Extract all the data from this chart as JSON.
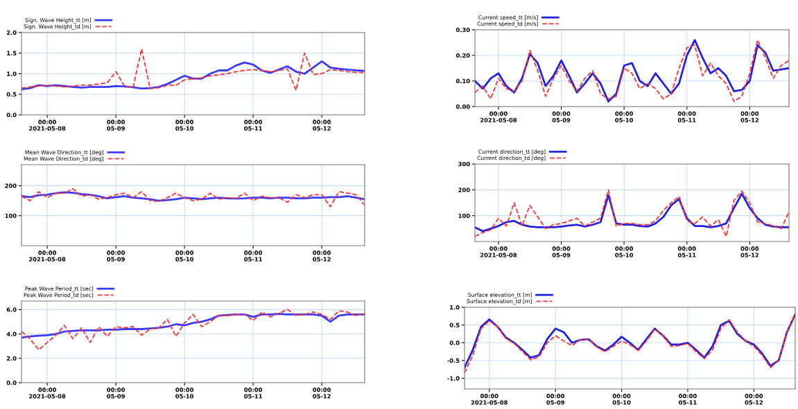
{
  "chart_data": [
    {
      "type": "line",
      "grid": true,
      "legend": "top left",
      "xlim": [
        "2021-05-07T15:00",
        "2021-05-12T15:00"
      ],
      "xticks": [
        {
          "value": "2021-05-08T00:00",
          "label": "00:00\n2021-05-08"
        },
        {
          "value": "2021-05-09T00:00",
          "label": "00:00\n05-09"
        },
        {
          "value": "2021-05-10T00:00",
          "label": "00:00\n05-10"
        },
        {
          "value": "2021-05-11T00:00",
          "label": "00:00\n05-11"
        },
        {
          "value": "2021-05-12T00:00",
          "label": "00:00\n05-12"
        }
      ],
      "ylim": [
        0,
        2
      ],
      "yticks": [
        {
          "value": 0,
          "label": "0.0"
        },
        {
          "value": 0.5,
          "label": "0.5"
        },
        {
          "value": 1,
          "label": "1.0"
        },
        {
          "value": 1.5,
          "label": "1.5"
        },
        {
          "value": 2,
          "label": "2.0"
        }
      ],
      "x": [
        "2021-05-07T15:00",
        "2021-05-07T18:00",
        "2021-05-07T21:00",
        "2021-05-08T00:00",
        "2021-05-08T03:00",
        "2021-05-08T06:00",
        "2021-05-08T09:00",
        "2021-05-08T12:00",
        "2021-05-08T15:00",
        "2021-05-08T18:00",
        "2021-05-08T21:00",
        "2021-05-09T00:00",
        "2021-05-09T03:00",
        "2021-05-09T06:00",
        "2021-05-09T09:00",
        "2021-05-09T12:00",
        "2021-05-09T15:00",
        "2021-05-09T18:00",
        "2021-05-09T21:00",
        "2021-05-10T00:00",
        "2021-05-10T03:00",
        "2021-05-10T06:00",
        "2021-05-10T09:00",
        "2021-05-10T12:00",
        "2021-05-10T15:00",
        "2021-05-10T18:00",
        "2021-05-10T21:00",
        "2021-05-11T00:00",
        "2021-05-11T03:00",
        "2021-05-11T06:00",
        "2021-05-11T09:00",
        "2021-05-11T12:00",
        "2021-05-11T15:00",
        "2021-05-11T18:00",
        "2021-05-11T21:00",
        "2021-05-12T00:00",
        "2021-05-12T03:00",
        "2021-05-12T06:00",
        "2021-05-12T09:00",
        "2021-05-12T12:00",
        "2021-05-12T15:00"
      ],
      "series": [
        {
          "name": "Sign. Wave Height_tt [m]",
          "color": "#3a3aff",
          "line_style": "solid",
          "values": [
            0.62,
            0.65,
            0.72,
            0.7,
            0.72,
            0.7,
            0.68,
            0.66,
            0.68,
            0.68,
            0.68,
            0.7,
            0.69,
            0.67,
            0.64,
            0.65,
            0.68,
            0.75,
            0.85,
            0.95,
            0.88,
            0.88,
            1.0,
            1.08,
            1.08,
            1.2,
            1.27,
            1.22,
            1.08,
            1.02,
            1.1,
            1.18,
            1.05,
            1.0,
            1.15,
            1.3,
            1.15,
            1.12,
            1.1,
            1.08,
            1.07
          ]
        },
        {
          "name": "Sign. Wave Height_td [m]",
          "color": "#ff3030",
          "line_style": "dashed",
          "values": [
            0.65,
            0.68,
            0.7,
            0.72,
            0.7,
            0.68,
            0.7,
            0.72,
            0.72,
            0.75,
            0.78,
            1.05,
            0.7,
            0.66,
            1.6,
            0.64,
            0.66,
            0.72,
            0.72,
            0.85,
            0.88,
            0.9,
            0.95,
            0.97,
            1.0,
            1.05,
            1.08,
            1.1,
            1.08,
            1.05,
            1.08,
            1.12,
            0.6,
            1.5,
            0.98,
            1.0,
            1.1,
            1.08,
            1.05,
            1.03,
            1.03
          ]
        }
      ]
    },
    {
      "type": "line",
      "grid": true,
      "legend": "top left",
      "xlim": [
        "2021-05-07T15:00",
        "2021-05-12T15:00"
      ],
      "xticks": [
        {
          "value": "2021-05-08T00:00",
          "label": "00:00\n2021-05-08"
        },
        {
          "value": "2021-05-09T00:00",
          "label": "00:00\n05-09"
        },
        {
          "value": "2021-05-10T00:00",
          "label": "00:00\n05-10"
        },
        {
          "value": "2021-05-11T00:00",
          "label": "00:00\n05-11"
        },
        {
          "value": "2021-05-12T00:00",
          "label": "00:00\n05-12"
        }
      ],
      "ylim": [
        0,
        270
      ],
      "yticks": [
        100,
        200
      ],
      "x": [
        "2021-05-07T15:00",
        "2021-05-07T18:00",
        "2021-05-07T21:00",
        "2021-05-08T00:00",
        "2021-05-08T03:00",
        "2021-05-08T06:00",
        "2021-05-08T09:00",
        "2021-05-08T12:00",
        "2021-05-08T15:00",
        "2021-05-08T18:00",
        "2021-05-08T21:00",
        "2021-05-09T00:00",
        "2021-05-09T03:00",
        "2021-05-09T06:00",
        "2021-05-09T09:00",
        "2021-05-09T12:00",
        "2021-05-09T15:00",
        "2021-05-09T18:00",
        "2021-05-09T21:00",
        "2021-05-10T00:00",
        "2021-05-10T03:00",
        "2021-05-10T06:00",
        "2021-05-10T09:00",
        "2021-05-10T12:00",
        "2021-05-10T15:00",
        "2021-05-10T18:00",
        "2021-05-10T21:00",
        "2021-05-11T00:00",
        "2021-05-11T03:00",
        "2021-05-11T06:00",
        "2021-05-11T09:00",
        "2021-05-11T12:00",
        "2021-05-11T15:00",
        "2021-05-11T18:00",
        "2021-05-11T21:00",
        "2021-05-12T00:00",
        "2021-05-12T03:00",
        "2021-05-12T06:00",
        "2021-05-12T09:00",
        "2021-05-12T12:00",
        "2021-05-12T15:00"
      ],
      "series": [
        {
          "name": "Mean Wave Direction_tt [deg]",
          "color": "#3a3aff",
          "line_style": "solid",
          "values": [
            165,
            162,
            168,
            170,
            175,
            178,
            176,
            172,
            170,
            165,
            158,
            162,
            165,
            160,
            158,
            155,
            150,
            152,
            155,
            160,
            158,
            155,
            158,
            160,
            158,
            157,
            158,
            160,
            160,
            158,
            160,
            160,
            158,
            158,
            160,
            160,
            162,
            162,
            165,
            160,
            155
          ]
        },
        {
          "name": "Mean Wave Direction_td [deg]",
          "color": "#ff3030",
          "line_style": "dashed",
          "values": [
            165,
            150,
            180,
            160,
            175,
            175,
            190,
            165,
            170,
            155,
            160,
            170,
            175,
            160,
            180,
            150,
            148,
            160,
            175,
            160,
            150,
            155,
            175,
            155,
            160,
            158,
            175,
            150,
            165,
            160,
            160,
            145,
            170,
            160,
            170,
            170,
            130,
            180,
            175,
            170,
            135
          ]
        }
      ]
    },
    {
      "type": "line",
      "grid": true,
      "legend": "top left",
      "xlim": [
        "2021-05-07T15:00",
        "2021-05-12T15:00"
      ],
      "xticks": [
        {
          "value": "2021-05-08T00:00",
          "label": "00:00\n2021-05-08"
        },
        {
          "value": "2021-05-09T00:00",
          "label": "00:00\n05-09"
        },
        {
          "value": "2021-05-10T00:00",
          "label": "00:00\n05-10"
        },
        {
          "value": "2021-05-11T00:00",
          "label": "00:00\n05-11"
        },
        {
          "value": "2021-05-12T00:00",
          "label": "00:00\n05-12"
        }
      ],
      "ylim": [
        0,
        6.7
      ],
      "yticks": [
        {
          "value": 0,
          "label": "0.0"
        },
        {
          "value": 2,
          "label": "2.0"
        },
        {
          "value": 4,
          "label": "4.0"
        },
        {
          "value": 6,
          "label": "6.0"
        }
      ],
      "x": [
        "2021-05-07T15:00",
        "2021-05-07T18:00",
        "2021-05-07T21:00",
        "2021-05-08T00:00",
        "2021-05-08T03:00",
        "2021-05-08T06:00",
        "2021-05-08T09:00",
        "2021-05-08T12:00",
        "2021-05-08T15:00",
        "2021-05-08T18:00",
        "2021-05-08T21:00",
        "2021-05-09T00:00",
        "2021-05-09T03:00",
        "2021-05-09T06:00",
        "2021-05-09T09:00",
        "2021-05-09T12:00",
        "2021-05-09T15:00",
        "2021-05-09T18:00",
        "2021-05-09T21:00",
        "2021-05-10T00:00",
        "2021-05-10T03:00",
        "2021-05-10T06:00",
        "2021-05-10T09:00",
        "2021-05-10T12:00",
        "2021-05-10T15:00",
        "2021-05-10T18:00",
        "2021-05-10T21:00",
        "2021-05-11T00:00",
        "2021-05-11T03:00",
        "2021-05-11T06:00",
        "2021-05-11T09:00",
        "2021-05-11T12:00",
        "2021-05-11T15:00",
        "2021-05-11T18:00",
        "2021-05-11T21:00",
        "2021-05-12T00:00",
        "2021-05-12T03:00",
        "2021-05-12T06:00",
        "2021-05-12T09:00",
        "2021-05-12T12:00",
        "2021-05-12T15:00"
      ],
      "series": [
        {
          "name": "Peak Wave Period_tt [sec]",
          "color": "#3a3aff",
          "line_style": "solid",
          "values": [
            3.7,
            3.8,
            3.85,
            3.9,
            4.0,
            4.2,
            4.25,
            4.3,
            4.3,
            4.3,
            4.35,
            4.35,
            4.4,
            4.4,
            4.4,
            4.45,
            4.5,
            4.6,
            4.8,
            4.7,
            4.9,
            5.0,
            5.2,
            5.5,
            5.55,
            5.6,
            5.6,
            5.4,
            5.6,
            5.6,
            5.65,
            5.6,
            5.6,
            5.6,
            5.6,
            5.5,
            5.0,
            5.5,
            5.6,
            5.6,
            5.6
          ]
        },
        {
          "name": "Peak Wave Period_td [sec]",
          "color": "#ff3030",
          "line_style": "dashed",
          "values": [
            4.2,
            3.6,
            2.7,
            3.3,
            3.9,
            4.7,
            3.6,
            4.5,
            3.3,
            4.6,
            3.8,
            4.6,
            4.5,
            4.6,
            3.9,
            4.4,
            4.5,
            5.2,
            3.8,
            4.9,
            5.6,
            4.6,
            5.0,
            5.5,
            5.5,
            5.6,
            5.6,
            5.1,
            5.8,
            5.4,
            5.7,
            6.0,
            5.5,
            5.6,
            5.8,
            5.6,
            5.2,
            5.9,
            5.8,
            5.5,
            5.7
          ]
        }
      ]
    },
    {
      "type": "line",
      "grid": true,
      "legend": "top left",
      "xlim": [
        "2021-05-07T15:00",
        "2021-05-12T15:00"
      ],
      "xticks": [
        {
          "value": "2021-05-08T00:00",
          "label": "00:00\n2021-05-08"
        },
        {
          "value": "2021-05-09T00:00",
          "label": "00:00\n05-09"
        },
        {
          "value": "2021-05-10T00:00",
          "label": "00:00\n05-10"
        },
        {
          "value": "2021-05-11T00:00",
          "label": "00:00\n05-11"
        },
        {
          "value": "2021-05-12T00:00",
          "label": "00:00\n05-12"
        }
      ],
      "ylim": [
        0,
        0.3
      ],
      "yticks": [
        {
          "value": 0,
          "label": "0.00"
        },
        {
          "value": 0.1,
          "label": "0.10"
        },
        {
          "value": 0.2,
          "label": "0.20"
        },
        {
          "value": 0.3,
          "label": "0.30"
        }
      ],
      "x": [
        "2021-05-07T15:00",
        "2021-05-07T18:00",
        "2021-05-07T21:00",
        "2021-05-08T00:00",
        "2021-05-08T03:00",
        "2021-05-08T06:00",
        "2021-05-08T09:00",
        "2021-05-08T12:00",
        "2021-05-08T15:00",
        "2021-05-08T18:00",
        "2021-05-08T21:00",
        "2021-05-09T00:00",
        "2021-05-09T03:00",
        "2021-05-09T06:00",
        "2021-05-09T09:00",
        "2021-05-09T12:00",
        "2021-05-09T15:00",
        "2021-05-09T18:00",
        "2021-05-09T21:00",
        "2021-05-10T00:00",
        "2021-05-10T03:00",
        "2021-05-10T06:00",
        "2021-05-10T09:00",
        "2021-05-10T12:00",
        "2021-05-10T15:00",
        "2021-05-10T18:00",
        "2021-05-10T21:00",
        "2021-05-11T00:00",
        "2021-05-11T03:00",
        "2021-05-11T06:00",
        "2021-05-11T09:00",
        "2021-05-11T12:00",
        "2021-05-11T15:00",
        "2021-05-11T18:00",
        "2021-05-11T21:00",
        "2021-05-12T00:00",
        "2021-05-12T03:00",
        "2021-05-12T06:00",
        "2021-05-12T09:00",
        "2021-05-12T12:00",
        "2021-05-12T15:00"
      ],
      "series": [
        {
          "name": "Current speed_tt [m/s]",
          "color": "#2020e0",
          "line_style": "solid",
          "values": [
            0.1,
            0.07,
            0.11,
            0.13,
            0.08,
            0.055,
            0.11,
            0.205,
            0.17,
            0.08,
            0.12,
            0.18,
            0.12,
            0.055,
            0.09,
            0.13,
            0.09,
            0.02,
            0.05,
            0.16,
            0.17,
            0.1,
            0.08,
            0.13,
            0.09,
            0.05,
            0.09,
            0.2,
            0.26,
            0.19,
            0.13,
            0.15,
            0.12,
            0.06,
            0.065,
            0.1,
            0.24,
            0.21,
            0.14,
            0.145,
            0.15
          ]
        },
        {
          "name": "Current speed_td [m/s]",
          "color": "#ff3030",
          "line_style": "dashed",
          "values": [
            0.055,
            0.08,
            0.03,
            0.11,
            0.07,
            0.06,
            0.1,
            0.22,
            0.14,
            0.04,
            0.11,
            0.16,
            0.1,
            0.06,
            0.11,
            0.14,
            0.05,
            0.03,
            0.04,
            0.15,
            0.13,
            0.07,
            0.09,
            0.07,
            0.03,
            0.05,
            0.15,
            0.23,
            0.24,
            0.12,
            0.17,
            0.12,
            0.09,
            0.02,
            0.04,
            0.13,
            0.26,
            0.19,
            0.11,
            0.16,
            0.18
          ]
        }
      ]
    },
    {
      "type": "line",
      "grid": true,
      "legend": "top left",
      "xlim": [
        "2021-05-07T15:00",
        "2021-05-12T15:00"
      ],
      "xticks": [
        {
          "value": "2021-05-08T00:00",
          "label": "00:00\n2021-05-08"
        },
        {
          "value": "2021-05-09T00:00",
          "label": "00:00\n05-09"
        },
        {
          "value": "2021-05-10T00:00",
          "label": "00:00\n05-10"
        },
        {
          "value": "2021-05-11T00:00",
          "label": "00:00\n05-11"
        },
        {
          "value": "2021-05-12T00:00",
          "label": "00:00\n05-12"
        }
      ],
      "ylim": [
        0,
        300
      ],
      "yticks": [
        100,
        200,
        300
      ],
      "x": [
        "2021-05-07T15:00",
        "2021-05-07T18:00",
        "2021-05-07T21:00",
        "2021-05-08T00:00",
        "2021-05-08T03:00",
        "2021-05-08T06:00",
        "2021-05-08T09:00",
        "2021-05-08T12:00",
        "2021-05-08T15:00",
        "2021-05-08T18:00",
        "2021-05-08T21:00",
        "2021-05-09T00:00",
        "2021-05-09T03:00",
        "2021-05-09T06:00",
        "2021-05-09T09:00",
        "2021-05-09T12:00",
        "2021-05-09T15:00",
        "2021-05-09T18:00",
        "2021-05-09T21:00",
        "2021-05-10T00:00",
        "2021-05-10T03:00",
        "2021-05-10T06:00",
        "2021-05-10T09:00",
        "2021-05-10T12:00",
        "2021-05-10T15:00",
        "2021-05-10T18:00",
        "2021-05-10T21:00",
        "2021-05-11T00:00",
        "2021-05-11T03:00",
        "2021-05-11T06:00",
        "2021-05-11T09:00",
        "2021-05-11T12:00",
        "2021-05-11T15:00",
        "2021-05-11T18:00",
        "2021-05-11T21:00",
        "2021-05-12T00:00",
        "2021-05-12T03:00",
        "2021-05-12T06:00",
        "2021-05-12T09:00",
        "2021-05-12T12:00",
        "2021-05-12T15:00"
      ],
      "series": [
        {
          "name": "Current direction_tt [deg]",
          "color": "#2020e0",
          "line_style": "solid",
          "values": [
            55,
            40,
            50,
            60,
            75,
            80,
            65,
            58,
            55,
            55,
            55,
            58,
            62,
            65,
            58,
            65,
            75,
            180,
            70,
            65,
            65,
            60,
            58,
            70,
            95,
            140,
            165,
            90,
            60,
            60,
            55,
            60,
            70,
            130,
            185,
            130,
            90,
            65,
            58,
            55,
            55
          ]
        },
        {
          "name": "Current direction_td [deg]",
          "color": "#ff3030",
          "line_style": "dashed",
          "values": [
            20,
            35,
            45,
            90,
            60,
            150,
            60,
            140,
            95,
            50,
            65,
            70,
            80,
            90,
            60,
            75,
            90,
            200,
            60,
            70,
            70,
            65,
            65,
            80,
            120,
            150,
            175,
            80,
            70,
            95,
            60,
            85,
            20,
            160,
            195,
            150,
            75,
            70,
            60,
            50,
            115
          ]
        }
      ]
    },
    {
      "type": "line",
      "grid": true,
      "legend": "top left",
      "xlim": [
        "2021-05-07T15:00",
        "2021-05-12T15:00"
      ],
      "xticks": [
        {
          "value": "2021-05-08T00:00",
          "label": "00:00\n2021-05-08"
        },
        {
          "value": "2021-05-09T00:00",
          "label": "00:00\n05-09"
        },
        {
          "value": "2021-05-10T00:00",
          "label": "00:00\n05-10"
        },
        {
          "value": "2021-05-11T00:00",
          "label": "00:00\n05-11"
        },
        {
          "value": "2021-05-12T00:00",
          "label": "00:00\n05-12"
        }
      ],
      "ylim": [
        -1.3,
        1.0
      ],
      "yticks": [
        {
          "value": -1,
          "label": "-1.0"
        },
        {
          "value": -0.5,
          "label": "-0.5"
        },
        {
          "value": 0,
          "label": "0.0"
        },
        {
          "value": 0.5,
          "label": "0.5"
        },
        {
          "value": 1,
          "label": "1.0"
        }
      ],
      "x": [
        "2021-05-07T15:00",
        "2021-05-07T18:00",
        "2021-05-07T21:00",
        "2021-05-08T00:00",
        "2021-05-08T03:00",
        "2021-05-08T06:00",
        "2021-05-08T09:00",
        "2021-05-08T12:00",
        "2021-05-08T15:00",
        "2021-05-08T18:00",
        "2021-05-08T21:00",
        "2021-05-09T00:00",
        "2021-05-09T03:00",
        "2021-05-09T06:00",
        "2021-05-09T09:00",
        "2021-05-09T12:00",
        "2021-05-09T15:00",
        "2021-05-09T18:00",
        "2021-05-09T21:00",
        "2021-05-10T00:00",
        "2021-05-10T03:00",
        "2021-05-10T06:00",
        "2021-05-10T09:00",
        "2021-05-10T12:00",
        "2021-05-10T15:00",
        "2021-05-10T18:00",
        "2021-05-10T21:00",
        "2021-05-11T00:00",
        "2021-05-11T03:00",
        "2021-05-11T06:00",
        "2021-05-11T09:00",
        "2021-05-11T12:00",
        "2021-05-11T15:00",
        "2021-05-11T18:00",
        "2021-05-11T21:00",
        "2021-05-12T00:00",
        "2021-05-12T03:00",
        "2021-05-12T06:00",
        "2021-05-12T09:00",
        "2021-05-12T12:00",
        "2021-05-12T15:00"
      ],
      "series": [
        {
          "name": "Surface elevation_tt [m]",
          "color": "#2020e0",
          "line_style": "solid",
          "values": [
            -0.7,
            -0.2,
            0.45,
            0.66,
            0.45,
            0.15,
            0.0,
            -0.2,
            -0.42,
            -0.35,
            0.1,
            0.4,
            0.3,
            0.0,
            0.08,
            0.1,
            -0.1,
            -0.22,
            -0.05,
            0.17,
            0.0,
            -0.2,
            0.1,
            0.4,
            0.2,
            -0.05,
            -0.05,
            0.0,
            -0.2,
            -0.42,
            -0.1,
            0.5,
            0.62,
            0.25,
            0.05,
            -0.05,
            -0.3,
            -0.65,
            -0.5,
            0.3,
            0.8
          ]
        },
        {
          "name": "Surface elevation_td [m]",
          "color": "#ff3030",
          "line_style": "dashed",
          "values": [
            -0.85,
            -0.35,
            0.4,
            0.62,
            0.45,
            0.12,
            -0.02,
            -0.25,
            -0.48,
            -0.4,
            0.0,
            0.2,
            0.05,
            -0.08,
            0.08,
            0.1,
            -0.12,
            -0.25,
            -0.1,
            0.05,
            -0.05,
            -0.22,
            0.05,
            0.38,
            0.2,
            -0.1,
            -0.08,
            -0.02,
            -0.25,
            -0.45,
            -0.2,
            0.4,
            0.65,
            0.3,
            0.05,
            -0.1,
            -0.35,
            -0.7,
            -0.5,
            0.3,
            0.82
          ]
        }
      ]
    }
  ]
}
